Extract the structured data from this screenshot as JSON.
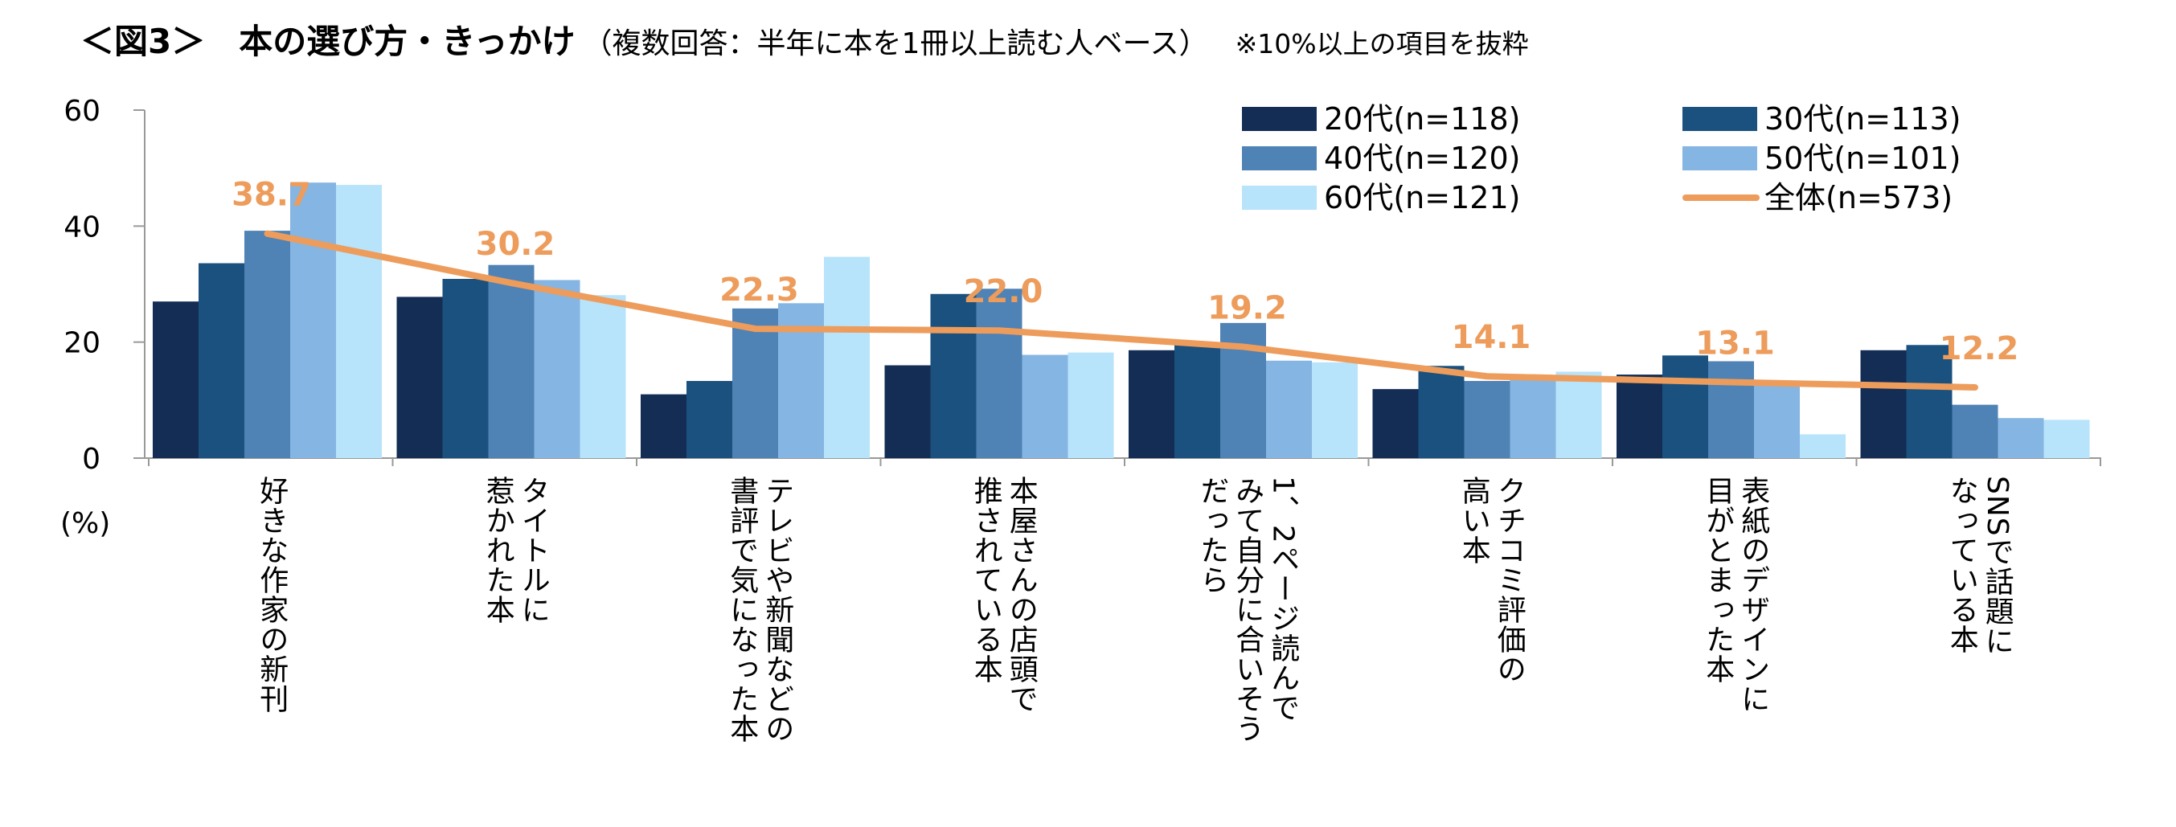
{
  "title": {
    "main": "＜図3＞　本の選び方・きっかけ",
    "sub": "（複数回答：半年に本を1冊以上読む人ベース）",
    "note": "※10%以上の項目を抜粋"
  },
  "colors": {
    "age20": "#142d55",
    "age30": "#1a517e",
    "age40": "#4f82b5",
    "age50": "#85b5e2",
    "age60": "#b7e3fb",
    "total": "#ed9c5b",
    "axis": "#999999"
  },
  "chart_data": {
    "type": "bar",
    "ylabel": "(%)",
    "ylim": [
      0,
      60
    ],
    "yticks": [
      0,
      20,
      40,
      60
    ],
    "grid": false,
    "legend_position": "top-right",
    "categories": [
      "好きな作家の新刊",
      "タイトルに惹かれた本",
      "テレビや新聞などの書評で気になった本",
      "本屋さんの店頭で推されている本",
      "1、2ページ読んでみて自分に合いそうだったら",
      "クチコミ評価の高い本",
      "表紙のデザインに目がとまった本",
      "SNSで話題になっている本"
    ],
    "category_lines": [
      [
        "好きな作家の新刊"
      ],
      [
        "タイトルに",
        "惹かれた本"
      ],
      [
        "テレビや新聞などの",
        "書評で気になった本"
      ],
      [
        "本屋さんの店頭で",
        "推されている本"
      ],
      [
        "1、2ページ読んで",
        "みて自分に合いそう",
        "だったら"
      ],
      [
        "クチコミ評価の",
        "高い本"
      ],
      [
        "表紙のデザインに",
        "目がとまった本"
      ],
      [
        "SNSで話題に",
        "なっている本"
      ]
    ],
    "series": [
      {
        "name": "20代(n=118)",
        "color_key": "age20",
        "values": [
          27.0,
          27.8,
          11.0,
          16.0,
          18.6,
          11.9,
          14.4,
          18.6
        ]
      },
      {
        "name": "30代(n=113)",
        "color_key": "age30",
        "values": [
          33.6,
          30.9,
          13.3,
          28.3,
          19.5,
          15.9,
          17.7,
          19.5
        ]
      },
      {
        "name": "40代(n=120)",
        "color_key": "age40",
        "values": [
          39.2,
          33.3,
          25.8,
          29.2,
          23.3,
          13.3,
          16.7,
          9.2
        ]
      },
      {
        "name": "50代(n=101)",
        "color_key": "age50",
        "values": [
          47.5,
          30.7,
          26.7,
          17.8,
          16.8,
          13.9,
          12.9,
          6.9
        ]
      },
      {
        "name": "60代(n=121)",
        "color_key": "age60",
        "values": [
          47.1,
          28.1,
          34.7,
          18.2,
          16.5,
          14.9,
          4.1,
          6.6
        ]
      }
    ],
    "line_series": {
      "name": "全体(n=573)",
      "color_key": "total",
      "values": [
        38.7,
        30.2,
        22.3,
        22.0,
        19.2,
        14.1,
        13.1,
        12.2
      ],
      "labels": [
        "38.7",
        "30.2",
        "22.3",
        "22.0",
        "19.2",
        "14.1",
        "13.1",
        "12.2"
      ]
    }
  }
}
